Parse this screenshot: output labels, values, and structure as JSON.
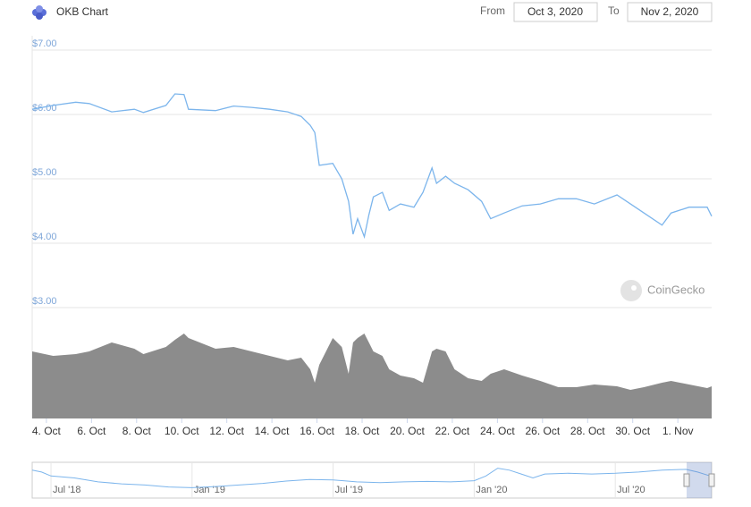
{
  "chart_data": {
    "type": "line",
    "title": "OKB Chart",
    "range": {
      "from_label": "From",
      "from": "Oct 3, 2020",
      "to_label": "To",
      "to": "Nov 2, 2020"
    },
    "credit": "CoinGecko",
    "color": "#7cb5ec",
    "grid": true,
    "x": [
      3.37,
      4.3,
      5.3,
      5.9,
      6.9,
      7.9,
      8.3,
      9.3,
      9.7,
      10.1,
      10.3,
      11.5,
      12.3,
      13.1,
      13.9,
      14.7,
      15.3,
      15.7,
      15.9,
      16.1,
      16.7,
      17.1,
      17.4,
      17.6,
      17.8,
      18.1,
      18.3,
      18.5,
      18.9,
      19.2,
      19.7,
      20.3,
      20.7,
      21.1,
      21.3,
      21.7,
      22.1,
      22.7,
      23.3,
      23.7,
      24.3,
      25.1,
      25.9,
      26.7,
      27.5,
      28.3,
      29.3,
      29.9,
      30.5,
      31.3,
      31.7,
      32.5,
      33.3,
      33.5
    ],
    "values": [
      6.08,
      6.14,
      6.19,
      6.17,
      6.04,
      6.08,
      6.03,
      6.14,
      6.32,
      6.31,
      6.08,
      6.06,
      6.13,
      6.11,
      6.08,
      6.04,
      5.97,
      5.83,
      5.72,
      5.21,
      5.24,
      5.0,
      4.65,
      4.14,
      4.38,
      4.1,
      4.44,
      4.72,
      4.79,
      4.51,
      4.61,
      4.56,
      4.79,
      5.17,
      4.93,
      5.04,
      4.93,
      4.83,
      4.65,
      4.38,
      4.47,
      4.58,
      4.61,
      4.69,
      4.69,
      4.61,
      4.75,
      4.61,
      4.47,
      4.28,
      4.47,
      4.56,
      4.56,
      4.42
    ],
    "xlim": [
      3.37,
      33.5
    ],
    "xticks": [
      {
        "value": 4,
        "label": "4. Oct"
      },
      {
        "value": 6,
        "label": "6. Oct"
      },
      {
        "value": 8,
        "label": "8. Oct"
      },
      {
        "value": 10,
        "label": "10. Oct"
      },
      {
        "value": 12,
        "label": "12. Oct"
      },
      {
        "value": 14,
        "label": "14. Oct"
      },
      {
        "value": 16,
        "label": "16. Oct"
      },
      {
        "value": 18,
        "label": "18. Oct"
      },
      {
        "value": 20,
        "label": "20. Oct"
      },
      {
        "value": 22,
        "label": "22. Oct"
      },
      {
        "value": 24,
        "label": "24. Oct"
      },
      {
        "value": 26,
        "label": "26. Oct"
      },
      {
        "value": 28,
        "label": "28. Oct"
      },
      {
        "value": 30,
        "label": "30. Oct"
      },
      {
        "value": 32,
        "label": "1. Nov"
      }
    ],
    "ylim": [
      3,
      7
    ],
    "yticks": [
      {
        "value": 3,
        "label": "$3.00"
      },
      {
        "value": 4,
        "label": "$4.00"
      },
      {
        "value": 5,
        "label": "$5.00"
      },
      {
        "value": 6,
        "label": "$6.00"
      },
      {
        "value": 7,
        "label": "$7.00"
      }
    ],
    "volume": {
      "color": "#8c8c8c",
      "ylim": [
        0,
        100
      ],
      "values": [
        75,
        70,
        72,
        75,
        85,
        78,
        72,
        80,
        88,
        95,
        90,
        78,
        80,
        75,
        70,
        65,
        68,
        55,
        40,
        60,
        90,
        80,
        50,
        85,
        90,
        95,
        85,
        75,
        70,
        55,
        48,
        45,
        40,
        75,
        78,
        75,
        55,
        45,
        42,
        50,
        55,
        48,
        42,
        35,
        35,
        38,
        36,
        32,
        35,
        40,
        42,
        38,
        34,
        36
      ]
    },
    "navigator": {
      "color": "#7cb5ec",
      "xlim": [
        5.2,
        34.1
      ],
      "ylim": [
        0,
        8
      ],
      "x": [
        5.2,
        5.6,
        6,
        7,
        8,
        9,
        10,
        11,
        12,
        13,
        14,
        15,
        16,
        17,
        18,
        19,
        20,
        21,
        22,
        23,
        24,
        24.5,
        25,
        25.5,
        26,
        26.5,
        27,
        28,
        29,
        30,
        31,
        32,
        33,
        33.5,
        34.1
      ],
      "values": [
        6.0,
        5.5,
        4.5,
        4.0,
        3.0,
        2.5,
        2.2,
        1.7,
        1.5,
        1.8,
        2.2,
        2.6,
        3.2,
        3.6,
        3.5,
        3.0,
        2.8,
        3.0,
        3.1,
        3.0,
        3.3,
        4.5,
        6.5,
        6.0,
        5.0,
        4.0,
        5.0,
        5.2,
        5.0,
        5.2,
        5.5,
        6.0,
        6.2,
        5.5,
        4.4
      ],
      "xticks": [
        {
          "value": 6,
          "label": "Jul '18"
        },
        {
          "value": 12,
          "label": "Jan '19"
        },
        {
          "value": 18,
          "label": "Jul '19"
        },
        {
          "value": 24,
          "label": "Jan '20"
        },
        {
          "value": 30,
          "label": "Jul '20"
        }
      ]
    }
  }
}
